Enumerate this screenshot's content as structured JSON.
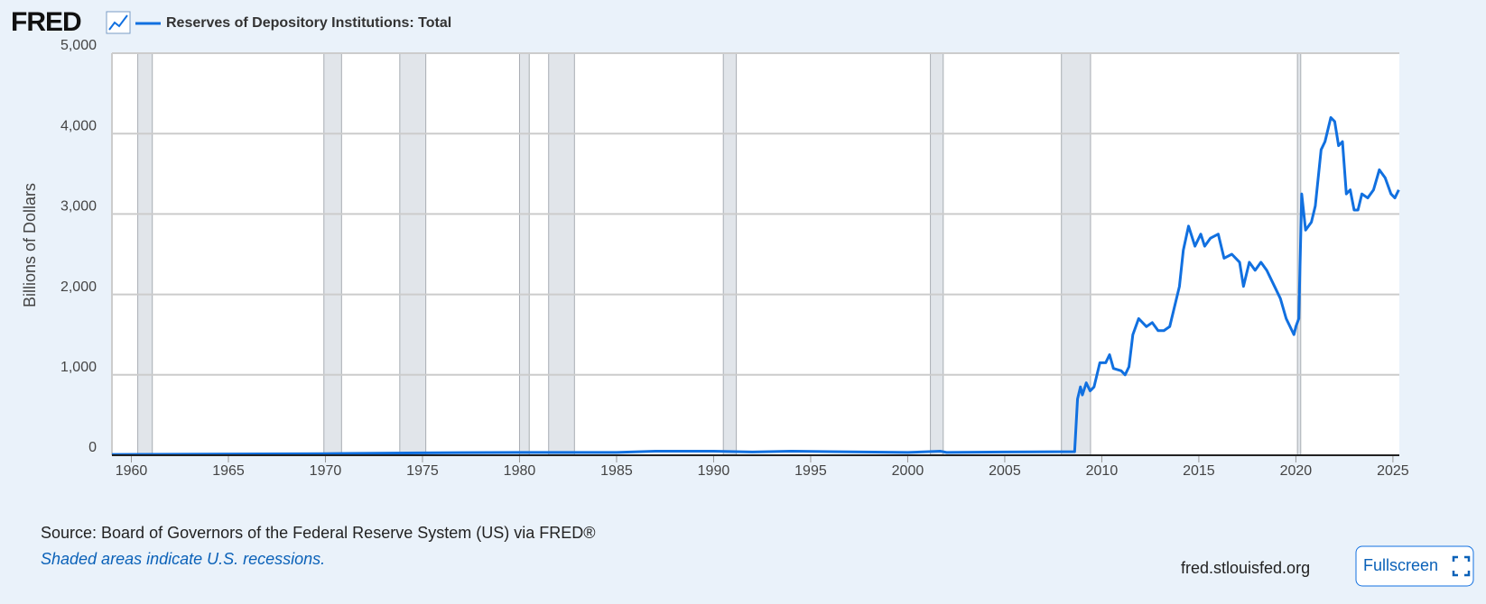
{
  "brand": "FRED",
  "chart_data": {
    "type": "line",
    "y_label": "Billions of Dollars",
    "xlim": [
      1959,
      2025.33
    ],
    "ylim": [
      0,
      5000
    ],
    "xticks": [
      1960,
      1965,
      1970,
      1975,
      1980,
      1985,
      1990,
      1995,
      2000,
      2005,
      2010,
      2015,
      2020,
      2025
    ],
    "yticks": [
      0,
      {
        "value": 1000,
        "label": "1,000"
      },
      {
        "value": 2000,
        "label": "2,000"
      },
      {
        "value": 3000,
        "label": "3,000"
      },
      {
        "value": 4000,
        "label": "4,000"
      },
      {
        "value": 5000,
        "label": "5,000"
      }
    ],
    "grid": true,
    "recession_color": "#e1e5ea",
    "recessions": [
      [
        1960.33,
        1961.08
      ],
      [
        1969.92,
        1970.83
      ],
      [
        1973.83,
        1975.17
      ],
      [
        1980.0,
        1980.5
      ],
      [
        1981.5,
        1982.83
      ],
      [
        1990.5,
        1991.17
      ],
      [
        2001.17,
        2001.83
      ],
      [
        2007.92,
        2009.42
      ],
      [
        2020.08,
        2020.25
      ]
    ],
    "x": [
      1959,
      1965,
      1970,
      1975,
      1980,
      1985,
      1987,
      1990,
      1992,
      1994,
      1996,
      2000,
      2001.7,
      2002,
      2005,
      2008.6,
      2008.75,
      2008.9,
      2009.0,
      2009.2,
      2009.4,
      2009.6,
      2009.9,
      2010.2,
      2010.4,
      2010.6,
      2011.0,
      2011.2,
      2011.4,
      2011.6,
      2011.9,
      2012.3,
      2012.6,
      2012.9,
      2013.2,
      2013.5,
      2014.0,
      2014.2,
      2014.47,
      2014.8,
      2015.1,
      2015.3,
      2015.6,
      2016.0,
      2016.3,
      2016.7,
      2017.1,
      2017.3,
      2017.6,
      2017.9,
      2018.2,
      2018.5,
      2018.9,
      2019.2,
      2019.5,
      2019.8,
      2019.9,
      2020.0,
      2020.15,
      2020.3,
      2020.5,
      2020.8,
      2021.0,
      2021.3,
      2021.5,
      2021.8,
      2022.0,
      2022.2,
      2022.4,
      2022.6,
      2022.8,
      2023.0,
      2023.2,
      2023.4,
      2023.7,
      2024.0,
      2024.3,
      2024.6,
      2024.9,
      2025.1,
      2025.3
    ],
    "series": [
      {
        "name": "Reserves of Depository Institutions: Total",
        "color": "#1170e0",
        "values": [
          10,
          15,
          20,
          30,
          35,
          35,
          50,
          50,
          40,
          50,
          45,
          35,
          50,
          35,
          40,
          45,
          700,
          850,
          750,
          900,
          800,
          850,
          1150,
          1150,
          1250,
          1080,
          1050,
          1000,
          1100,
          1500,
          1700,
          1600,
          1650,
          1550,
          1550,
          1600,
          2100,
          2550,
          2850,
          2600,
          2750,
          2600,
          2700,
          2750,
          2450,
          2500,
          2400,
          2100,
          2400,
          2300,
          2400,
          2300,
          2100,
          1950,
          1700,
          1550,
          1500,
          1600,
          1700,
          3250,
          2800,
          2900,
          3100,
          3800,
          3900,
          4200,
          4150,
          3850,
          3900,
          3250,
          3300,
          3050,
          3050,
          3250,
          3200,
          3300,
          3550,
          3450,
          3250,
          3200,
          3300
        ]
      }
    ]
  },
  "footer": {
    "source": "Source: Board of Governors of the Federal Reserve System (US) via FRED®",
    "note": "Shaded areas indicate U.S. recessions.",
    "site": "fred.stlouisfed.org",
    "button": "Fullscreen"
  }
}
